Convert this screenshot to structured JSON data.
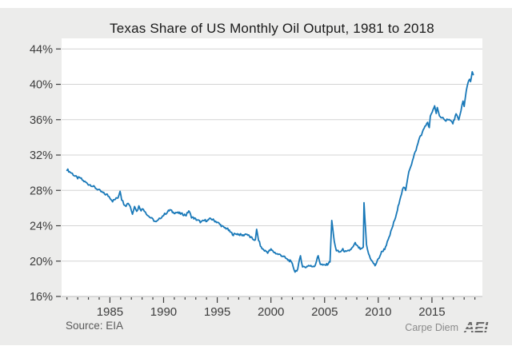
{
  "page": {
    "background": "#ffffff",
    "panel_background": "#ececeb"
  },
  "header": {
    "title": "Texas Share of US Monthly Oil Output, 1981 to 2018"
  },
  "footer": {
    "source_note": "Source: EIA",
    "branding_text": "Carpe Diem",
    "branding_logo": "AEI"
  },
  "colors": {
    "line": "#1878b8",
    "plot_background": "#ffffff",
    "gridline": "#d4d4d4",
    "tick": "#3d3d3d",
    "tick_label": "#3d3d3d",
    "axis_line": "#bdbdbd"
  },
  "chart_data": {
    "type": "line",
    "title": "Texas Share of US Monthly Oil Output, 1981 to 2018",
    "xlabel": "",
    "ylabel": "",
    "grid": "horizontal",
    "legend_position": "none",
    "xlim": [
      1980.5,
      2019.7
    ],
    "ylim": [
      16,
      45.2
    ],
    "x_major_ticks": [
      1985,
      1990,
      1995,
      2000,
      2005,
      2010,
      2015
    ],
    "x_major_tick_labels": [
      "1985",
      "1990",
      "1995",
      "2000",
      "2005",
      "2010",
      "2015"
    ],
    "x_minor_tick_step_years": 1,
    "y_ticks": [
      16,
      20,
      24,
      28,
      32,
      36,
      40,
      44
    ],
    "y_tick_labels": [
      "16%",
      "20%",
      "24%",
      "28%",
      "32%",
      "36%",
      "40%",
      "44%"
    ],
    "series": [
      {
        "name": "Texas share of US monthly oil output (%)",
        "points": [
          [
            1981.0,
            30.4
          ],
          [
            1981.25,
            30.1
          ],
          [
            1981.5,
            29.9
          ],
          [
            1981.75,
            29.6
          ],
          [
            1982.0,
            29.4
          ],
          [
            1982.25,
            29.4
          ],
          [
            1982.5,
            29.1
          ],
          [
            1982.75,
            28.9
          ],
          [
            1983.0,
            28.7
          ],
          [
            1983.25,
            28.6
          ],
          [
            1983.5,
            28.4
          ],
          [
            1983.75,
            28.2
          ],
          [
            1984.0,
            28.0
          ],
          [
            1984.25,
            27.8
          ],
          [
            1984.5,
            27.6
          ],
          [
            1984.75,
            27.5
          ],
          [
            1985.0,
            27.2
          ],
          [
            1985.25,
            26.8
          ],
          [
            1985.5,
            27.0
          ],
          [
            1985.75,
            27.2
          ],
          [
            1985.95,
            27.9
          ],
          [
            1986.1,
            27.0
          ],
          [
            1986.3,
            26.5
          ],
          [
            1986.5,
            26.3
          ],
          [
            1986.7,
            26.6
          ],
          [
            1986.9,
            26.2
          ],
          [
            1987.1,
            25.3
          ],
          [
            1987.3,
            26.3
          ],
          [
            1987.5,
            25.6
          ],
          [
            1987.7,
            26.2
          ],
          [
            1987.9,
            25.8
          ],
          [
            1988.1,
            25.9
          ],
          [
            1988.3,
            25.6
          ],
          [
            1988.5,
            25.2
          ],
          [
            1988.7,
            25.0
          ],
          [
            1988.9,
            24.8
          ],
          [
            1989.1,
            24.6
          ],
          [
            1989.3,
            24.4
          ],
          [
            1989.5,
            24.6
          ],
          [
            1989.7,
            24.9
          ],
          [
            1989.9,
            25.1
          ],
          [
            1990.1,
            25.3
          ],
          [
            1990.3,
            25.5
          ],
          [
            1990.6,
            25.8
          ],
          [
            1990.9,
            25.5
          ],
          [
            1991.2,
            25.5
          ],
          [
            1991.5,
            25.4
          ],
          [
            1991.8,
            25.3
          ],
          [
            1992.1,
            25.2
          ],
          [
            1992.35,
            25.7
          ],
          [
            1992.6,
            25.0
          ],
          [
            1992.9,
            24.8
          ],
          [
            1993.2,
            24.6
          ],
          [
            1993.5,
            24.4
          ],
          [
            1993.8,
            24.6
          ],
          [
            1994.1,
            24.6
          ],
          [
            1994.4,
            24.8
          ],
          [
            1994.7,
            24.6
          ],
          [
            1995.0,
            24.4
          ],
          [
            1995.3,
            24.1
          ],
          [
            1995.6,
            23.8
          ],
          [
            1995.9,
            23.7
          ],
          [
            1996.2,
            23.3
          ],
          [
            1996.5,
            23.0
          ],
          [
            1996.8,
            23.1
          ],
          [
            1997.1,
            23.0
          ],
          [
            1997.4,
            22.9
          ],
          [
            1997.7,
            23.1
          ],
          [
            1998.0,
            22.8
          ],
          [
            1998.3,
            22.5
          ],
          [
            1998.55,
            22.4
          ],
          [
            1998.67,
            23.6
          ],
          [
            1998.85,
            22.4
          ],
          [
            1999.1,
            21.5
          ],
          [
            1999.4,
            21.2
          ],
          [
            1999.7,
            21.0
          ],
          [
            2000.0,
            21.3
          ],
          [
            2000.3,
            21.0
          ],
          [
            2000.6,
            20.8
          ],
          [
            2000.9,
            20.7
          ],
          [
            2001.2,
            20.5
          ],
          [
            2001.5,
            20.2
          ],
          [
            2001.8,
            20.0
          ],
          [
            2002.0,
            19.6
          ],
          [
            2002.25,
            18.8
          ],
          [
            2002.5,
            19.1
          ],
          [
            2002.75,
            20.6
          ],
          [
            2002.95,
            19.4
          ],
          [
            2003.2,
            19.3
          ],
          [
            2003.5,
            19.5
          ],
          [
            2003.8,
            19.4
          ],
          [
            2004.1,
            19.5
          ],
          [
            2004.4,
            20.6
          ],
          [
            2004.6,
            19.7
          ],
          [
            2004.9,
            19.5
          ],
          [
            2005.2,
            19.6
          ],
          [
            2005.5,
            19.9
          ],
          [
            2005.67,
            24.6
          ],
          [
            2005.9,
            22.2
          ],
          [
            2006.1,
            21.2
          ],
          [
            2006.4,
            21.0
          ],
          [
            2006.7,
            21.3
          ],
          [
            2007.0,
            21.0
          ],
          [
            2007.3,
            21.2
          ],
          [
            2007.6,
            21.5
          ],
          [
            2007.85,
            22.0
          ],
          [
            2008.1,
            21.6
          ],
          [
            2008.4,
            21.3
          ],
          [
            2008.6,
            21.6
          ],
          [
            2008.67,
            26.6
          ],
          [
            2008.9,
            21.8
          ],
          [
            2009.1,
            20.8
          ],
          [
            2009.4,
            20.0
          ],
          [
            2009.7,
            19.5
          ],
          [
            2010.0,
            20.2
          ],
          [
            2010.3,
            21.0
          ],
          [
            2010.6,
            21.4
          ],
          [
            2011.0,
            22.6
          ],
          [
            2011.35,
            24.0
          ],
          [
            2011.7,
            25.3
          ],
          [
            2012.0,
            27.0
          ],
          [
            2012.35,
            28.4
          ],
          [
            2012.55,
            28.0
          ],
          [
            2012.85,
            30.2
          ],
          [
            2013.1,
            31.0
          ],
          [
            2013.35,
            32.0
          ],
          [
            2013.6,
            32.9
          ],
          [
            2013.85,
            34.0
          ],
          [
            2014.1,
            34.5
          ],
          [
            2014.35,
            35.3
          ],
          [
            2014.6,
            35.6
          ],
          [
            2014.75,
            35.1
          ],
          [
            2014.85,
            36.3
          ],
          [
            2015.1,
            37.1
          ],
          [
            2015.25,
            37.6
          ],
          [
            2015.4,
            36.7
          ],
          [
            2015.5,
            37.5
          ],
          [
            2015.7,
            36.4
          ],
          [
            2015.85,
            36.1
          ],
          [
            2016.1,
            36.2
          ],
          [
            2016.3,
            35.9
          ],
          [
            2016.5,
            36.1
          ],
          [
            2016.7,
            35.9
          ],
          [
            2016.95,
            35.6
          ],
          [
            2017.25,
            36.6
          ],
          [
            2017.5,
            35.9
          ],
          [
            2017.7,
            37.1
          ],
          [
            2017.9,
            38.1
          ],
          [
            2018.0,
            37.5
          ],
          [
            2018.2,
            39.3
          ],
          [
            2018.35,
            40.2
          ],
          [
            2018.5,
            40.6
          ],
          [
            2018.6,
            40.3
          ],
          [
            2018.75,
            41.3
          ],
          [
            2018.85,
            41.1
          ]
        ]
      }
    ]
  }
}
